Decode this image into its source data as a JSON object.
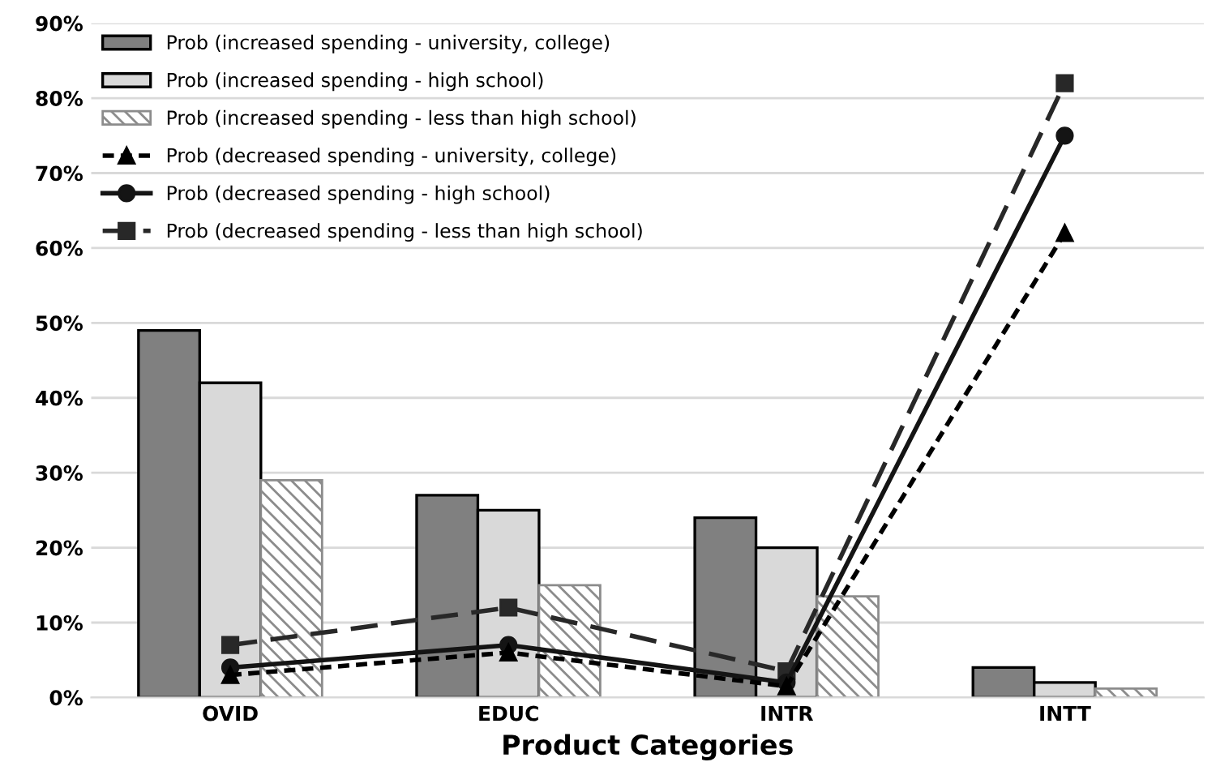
{
  "chart_data": {
    "type": "bar",
    "xlabel": "Product Categories",
    "categories": [
      "OVID",
      "EDUC",
      "INTR",
      "INTT"
    ],
    "series": [
      {
        "name": "Prob (increased spending - university, college)",
        "color": "#808080",
        "values": [
          49,
          27,
          24,
          4
        ]
      },
      {
        "name": "Prob (increased spending - high school)",
        "color": "#d9d9d9",
        "values": [
          42,
          25,
          20,
          2
        ]
      },
      {
        "name": "Prob (increased spending - less than high school)",
        "color": "#8c8c8c",
        "values": [
          29,
          15,
          13.5,
          1.2
        ]
      },
      {
        "name": "Prob (decreased spending - university, college)",
        "type": "line",
        "color": "#000000",
        "marker": "triangle",
        "line_style": "dotted",
        "values": [
          3,
          6,
          1.5,
          62
        ]
      },
      {
        "name": "Prob (decreased spending - high school)",
        "type": "line",
        "color": "#141414",
        "marker": "circle",
        "line_style": "solid",
        "values": [
          4,
          7,
          2,
          75
        ]
      },
      {
        "name": "Prob (decreased spending - less than high school)",
        "type": "line",
        "color": "#282828",
        "marker": "square",
        "line_style": "dashed",
        "values": [
          7,
          12,
          3.5,
          82
        ]
      }
    ],
    "ylim": [
      0,
      90
    ],
    "yticks": [
      {
        "value": 0,
        "label": "0%"
      },
      {
        "value": 10,
        "label": "10%"
      },
      {
        "value": 20,
        "label": "20%"
      },
      {
        "value": 30,
        "label": "30%"
      },
      {
        "value": 40,
        "label": "40%"
      },
      {
        "value": 50,
        "label": "50%"
      },
      {
        "value": 60,
        "label": "60%"
      },
      {
        "value": 70,
        "label": "70%"
      },
      {
        "value": 80,
        "label": "80%"
      },
      {
        "value": 90,
        "label": "90%"
      }
    ],
    "grid": "y",
    "legend": "top left"
  }
}
